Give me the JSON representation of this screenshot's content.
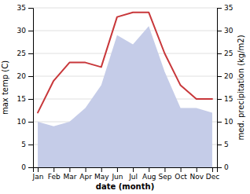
{
  "chart_data": {
    "type": "line",
    "xlabel": "date (month)",
    "ylabel": "max temp (C)",
    "y2label": "med. precipitation (kg/m2)",
    "categories": [
      "Jan",
      "Feb",
      "Mar",
      "Apr",
      "May",
      "Jun",
      "Jul",
      "Aug",
      "Sep",
      "Oct",
      "Nov",
      "Dec"
    ],
    "series": [
      {
        "type": "area",
        "color": "#c5cce8",
        "values": [
          10,
          9,
          10,
          13,
          18,
          29,
          27,
          31,
          21,
          13,
          13,
          12
        ]
      },
      {
        "type": "line",
        "color": "#c8373a",
        "values": [
          12,
          19,
          23,
          23,
          22,
          33,
          34,
          34,
          25,
          18,
          15,
          15
        ]
      }
    ],
    "ylim": [
      0,
      35
    ],
    "yticks": [
      0,
      5,
      10,
      15,
      20,
      25,
      30,
      35
    ],
    "y2lim": [
      0,
      35
    ],
    "y2ticks": [
      0,
      5,
      10,
      15,
      20,
      25,
      30,
      35
    ],
    "grid": true
  }
}
